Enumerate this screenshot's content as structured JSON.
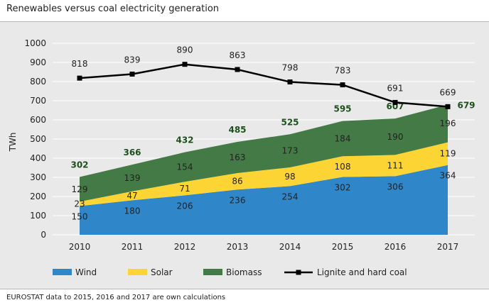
{
  "page": {
    "title": "Renewables versus coal electricity generation",
    "source": "EUROSTAT data to 2015, 2016 and 2017 are own calculations"
  },
  "colors": {
    "wind": "#2f86c9",
    "solar": "#fcd535",
    "biomass": "#437a45",
    "coal": "#000000",
    "grid": "#ffffff",
    "totals": "#1e4f1e"
  },
  "chart_data": {
    "type": "area",
    "x": [
      "2010",
      "2011",
      "2012",
      "2013",
      "2014",
      "2015",
      "2016",
      "2017"
    ],
    "ylabel": "TWh",
    "ylim": [
      0,
      1000
    ],
    "yticks": [
      0,
      100,
      200,
      300,
      400,
      500,
      600,
      700,
      800,
      900,
      1000
    ],
    "grid": true,
    "legend_position": "bottom",
    "series": [
      {
        "name": "Wind",
        "kind": "stacked-area",
        "values": [
          150,
          180,
          206,
          236,
          254,
          302,
          306,
          364
        ]
      },
      {
        "name": "Solar",
        "kind": "stacked-area",
        "values": [
          23,
          47,
          71,
          86,
          98,
          108,
          111,
          119
        ]
      },
      {
        "name": "Biomass",
        "kind": "stacked-area",
        "values": [
          129,
          139,
          154,
          163,
          173,
          184,
          190,
          196
        ]
      },
      {
        "name": "Lignite and hard coal",
        "kind": "line",
        "values": [
          818,
          839,
          890,
          863,
          798,
          783,
          691,
          669
        ]
      }
    ],
    "totals": [
      302,
      366,
      432,
      485,
      525,
      595,
      607,
      679
    ]
  }
}
